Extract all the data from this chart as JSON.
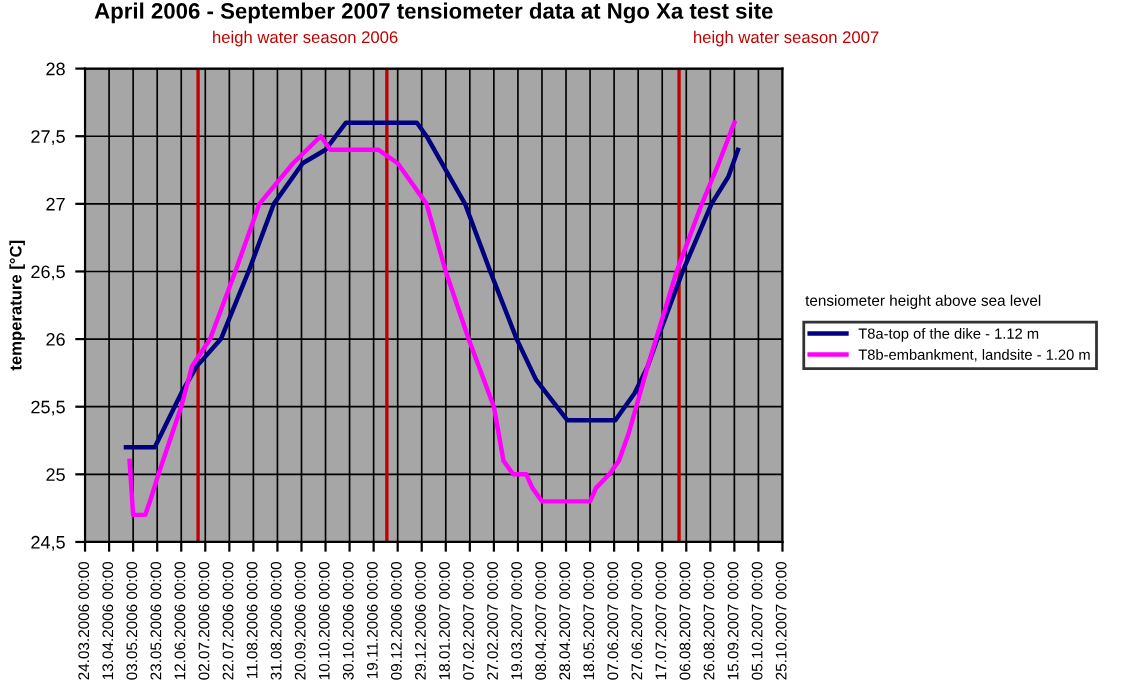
{
  "chart_data": {
    "type": "line",
    "title": "April 2006 - September 2007 tensiometer data at Ngo Xa test site",
    "ylabel": "temperature [°C]",
    "legend_title": "tensiometer height above sea level",
    "legend": "right",
    "grid": true,
    "marker": "none",
    "line_style": "solid",
    "xlim": [
      "2006-03-24",
      "2007-10-25"
    ],
    "ylim": [
      24.5,
      28
    ],
    "yticks": [
      {
        "value": 24.5,
        "label": "24,5"
      },
      25,
      {
        "value": 25.5,
        "label": "25,5"
      },
      26,
      {
        "value": 26.5,
        "label": "26,5"
      },
      27,
      {
        "value": 27.5,
        "label": "27,5"
      },
      28
    ],
    "xticks": [
      {
        "value": "2006-03-24",
        "label": "24.03.2006 00:00"
      },
      {
        "value": "2006-04-13",
        "label": "13.04.2006 00:00"
      },
      {
        "value": "2006-05-03",
        "label": "03.05.2006 00:00"
      },
      {
        "value": "2006-05-23",
        "label": "23.05.2006 00:00"
      },
      {
        "value": "2006-06-12",
        "label": "12.06.2006 00:00"
      },
      {
        "value": "2006-07-02",
        "label": "02.07.2006 00:00"
      },
      {
        "value": "2006-07-22",
        "label": "22.07.2006 00:00"
      },
      {
        "value": "2006-08-11",
        "label": "11.08.2006 00:00"
      },
      {
        "value": "2006-08-31",
        "label": "31.08.2006 00:00"
      },
      {
        "value": "2006-09-20",
        "label": "20.09.2006 00:00"
      },
      {
        "value": "2006-10-10",
        "label": "10.10.2006 00:00"
      },
      {
        "value": "2006-10-30",
        "label": "30.10.2006 00:00"
      },
      {
        "value": "2006-11-19",
        "label": "19.11.2006 00:00"
      },
      {
        "value": "2006-12-09",
        "label": "09.12.2006 00:00"
      },
      {
        "value": "2006-12-29",
        "label": "29.12.2006 00:00"
      },
      {
        "value": "2007-01-18",
        "label": "18.01.2007 00:00"
      },
      {
        "value": "2007-02-07",
        "label": "07.02.2007 00:00"
      },
      {
        "value": "2007-02-27",
        "label": "27.02.2007 00:00"
      },
      {
        "value": "2007-03-19",
        "label": "19.03.2007 00:00"
      },
      {
        "value": "2007-04-08",
        "label": "08.04.2007 00:00"
      },
      {
        "value": "2007-04-28",
        "label": "28.04.2007 00:00"
      },
      {
        "value": "2007-05-18",
        "label": "18.05.2007 00:00"
      },
      {
        "value": "2007-06-07",
        "label": "07.06.2007 00:00"
      },
      {
        "value": "2007-06-27",
        "label": "27.06.2007 00:00"
      },
      {
        "value": "2007-07-17",
        "label": "17.07.2007 00:00"
      },
      {
        "value": "2007-08-06",
        "label": "06.08.2007 00:00"
      },
      {
        "value": "2007-08-26",
        "label": "26.08.2007 00:00"
      },
      {
        "value": "2007-09-15",
        "label": "15.09.2007 00:00"
      },
      {
        "value": "2007-10-05",
        "label": "05.10.2007 00:00"
      },
      {
        "value": "2007-10-25",
        "label": "25.10.2007 00:00"
      }
    ],
    "ref_lines": [
      {
        "axis": "x",
        "value": "2006-06-26",
        "label": "heigh water season 2006",
        "color": "#c00000"
      },
      {
        "axis": "x",
        "value": "2006-11-30",
        "label": null,
        "color": "#c00000"
      },
      {
        "axis": "x",
        "value": "2007-07-31",
        "label": "heigh water season 2007",
        "color": "#c00000"
      }
    ],
    "series": [
      {
        "name": "T8a-top of the dike - 1.12 m",
        "color": "#000080",
        "x": [
          "2006-04-27",
          "2006-05-21",
          "2006-06-01",
          "2006-06-12",
          "2006-06-25",
          "2006-07-15",
          "2006-08-07",
          "2006-08-28",
          "2006-09-21",
          "2006-10-10",
          "2006-10-27",
          "2006-12-25",
          "2007-01-02",
          "2007-02-03",
          "2007-02-24",
          "2007-03-18",
          "2007-04-03",
          "2007-04-29",
          "2007-06-08",
          "2007-06-24",
          "2007-07-05",
          "2007-07-13",
          "2007-08-03",
          "2007-08-27",
          "2007-09-10",
          "2007-09-18"
        ],
        "values": [
          25.2,
          25.2,
          25.4,
          25.6,
          25.8,
          26.0,
          26.5,
          27.0,
          27.3,
          27.4,
          27.6,
          27.6,
          27.5,
          27.0,
          26.5,
          26.0,
          25.7,
          25.4,
          25.4,
          25.6,
          25.8,
          26.0,
          26.5,
          27.0,
          27.2,
          27.4
        ]
      },
      {
        "name": "T8b-embankment, landsite - 1.20 m",
        "color": "#ff00ff",
        "x": [
          "2006-04-30",
          "2006-05-03",
          "2006-05-13",
          "2006-05-17",
          "2006-05-24",
          "2006-06-12",
          "2006-06-21",
          "2006-07-06",
          "2006-07-27",
          "2006-08-16",
          "2006-09-13",
          "2006-10-06",
          "2006-10-14",
          "2006-11-23",
          "2006-12-09",
          "2007-01-02",
          "2007-01-18",
          "2007-02-06",
          "2007-02-27",
          "2007-03-07",
          "2007-03-15",
          "2007-03-26",
          "2007-03-31",
          "2007-04-08",
          "2007-05-18",
          "2007-05-23",
          "2007-06-03",
          "2007-06-11",
          "2007-06-19",
          "2007-07-05",
          "2007-07-29",
          "2007-08-19",
          "2007-09-02",
          "2007-09-15"
        ],
        "values": [
          25.1,
          24.7,
          24.7,
          24.8,
          25.0,
          25.5,
          25.8,
          26.0,
          26.5,
          27.0,
          27.3,
          27.5,
          27.4,
          27.4,
          27.3,
          27.0,
          26.5,
          26.0,
          25.5,
          25.1,
          25.0,
          25.0,
          24.9,
          24.8,
          24.8,
          24.9,
          25.0,
          25.1,
          25.3,
          25.8,
          26.5,
          27.0,
          27.3,
          27.6
        ]
      }
    ]
  }
}
